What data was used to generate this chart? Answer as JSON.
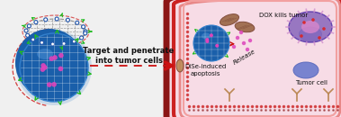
{
  "bg_color": "#f0f0f0",
  "cell_bg": "#f7dce6",
  "cell_wall_dark": "#8b1515",
  "cell_wall_red": "#cc2222",
  "cell_wall_pink": "#e88888",
  "cell_wall_light": "#f2a0a0",
  "nanocapsule_blue": "#1a5faa",
  "nanocapsule_mid": "#3380cc",
  "nanocapsule_light": "#66aaee",
  "net_gray": "#666666",
  "net_blue": "#2255aa",
  "dox_magenta": "#dd44bb",
  "organelle_purple": "#8866bb",
  "organelle_light": "#cc88cc",
  "tumor_blue": "#6677cc",
  "mito_brown": "#996644",
  "mito_dark": "#7a4433",
  "arrow_red": "#cc1111",
  "green_arrow": "#22bb22",
  "anchor_tan": "#bb8855",
  "text_black": "#111111",
  "release_color": "#444444",
  "figsize": [
    3.79,
    1.3
  ],
  "dpi": 100,
  "title_text": "Target and penetrate\ninto tumor cells",
  "dise_text": "DiSe-induced\napoptosis",
  "tumor_cell_text": "Tumor cell",
  "release_text": "Release",
  "dox_text": "DOX kills tumor"
}
